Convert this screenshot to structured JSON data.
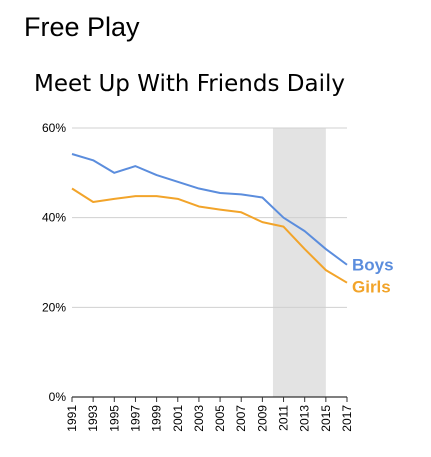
{
  "header": {
    "title": "Free Play"
  },
  "chart_data": {
    "type": "line",
    "title": "Meet Up With Friends Daily",
    "xlabel": "",
    "ylabel": "",
    "x": [
      1991,
      1993,
      1995,
      1997,
      1999,
      2001,
      2003,
      2005,
      2007,
      2009,
      2011,
      2013,
      2015,
      2017
    ],
    "x_tick_labels": [
      "1991",
      "1993",
      "1995",
      "1997",
      "1999",
      "2001",
      "2003",
      "2005",
      "2007",
      "2009",
      "2011",
      "2013",
      "2015",
      "2017"
    ],
    "ylim": [
      0,
      60
    ],
    "y_ticks": [
      0,
      20,
      40,
      60
    ],
    "y_tick_labels": [
      "0%",
      "20%",
      "40%",
      "60%"
    ],
    "grid": true,
    "shaded_region": {
      "x_start": 2010,
      "x_end": 2015,
      "color": "#e3e3e3"
    },
    "series": [
      {
        "name": "Boys",
        "color": "#5b8ddd",
        "values": [
          54.2,
          52.8,
          50.0,
          51.5,
          49.5,
          48.0,
          46.5,
          45.5,
          45.2,
          44.5,
          40.0,
          37.0,
          33.0,
          29.5
        ]
      },
      {
        "name": "Girls",
        "color": "#f2a42a",
        "values": [
          46.5,
          43.5,
          44.2,
          44.8,
          44.8,
          44.2,
          42.5,
          41.8,
          41.2,
          39.0,
          38.0,
          33.0,
          28.3,
          25.5
        ]
      }
    ]
  }
}
